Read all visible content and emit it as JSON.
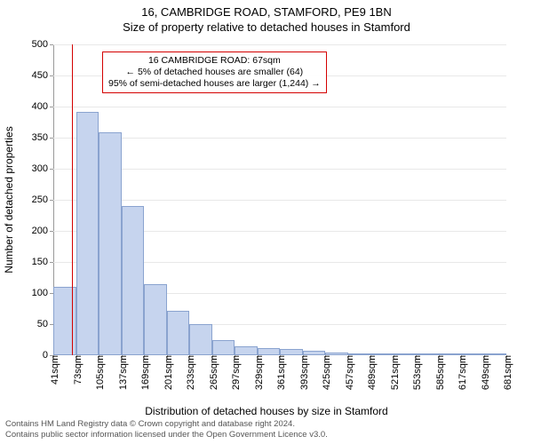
{
  "header": {
    "title": "16, CAMBRIDGE ROAD, STAMFORD, PE9 1BN",
    "subtitle": "Size of property relative to detached houses in Stamford"
  },
  "chart": {
    "type": "histogram",
    "y_axis_title": "Number of detached properties",
    "x_axis_title": "Distribution of detached houses by size in Stamford",
    "ylim": [
      0,
      500
    ],
    "ytick_step": 50,
    "background_color": "#ffffff",
    "grid_color": "#e8e8e8",
    "axis_color": "#999999",
    "bar_fill": "#c6d4ee",
    "bar_border": "#8aa3cf",
    "label_fontsize": 11,
    "axis_title_fontsize": 12,
    "x_start": 41,
    "x_step": 32,
    "x_n_labels": 21,
    "x_label_suffix": "sqm",
    "bar_values": [
      110,
      392,
      358,
      240,
      115,
      72,
      50,
      25,
      15,
      12,
      10,
      7,
      5,
      3,
      3,
      2,
      2,
      1,
      1,
      1
    ],
    "marker": {
      "position_value": 67,
      "color": "#d40000"
    },
    "callout": {
      "lines": [
        "16 CAMBRIDGE ROAD: 67sqm",
        "← 5% of detached houses are smaller (64)",
        "95% of semi-detached houses are larger (1,244) →"
      ],
      "border_color": "#d40000"
    }
  },
  "footer": {
    "line1": "Contains HM Land Registry data © Crown copyright and database right 2024.",
    "line2": "Contains public sector information licensed under the Open Government Licence v3.0."
  }
}
